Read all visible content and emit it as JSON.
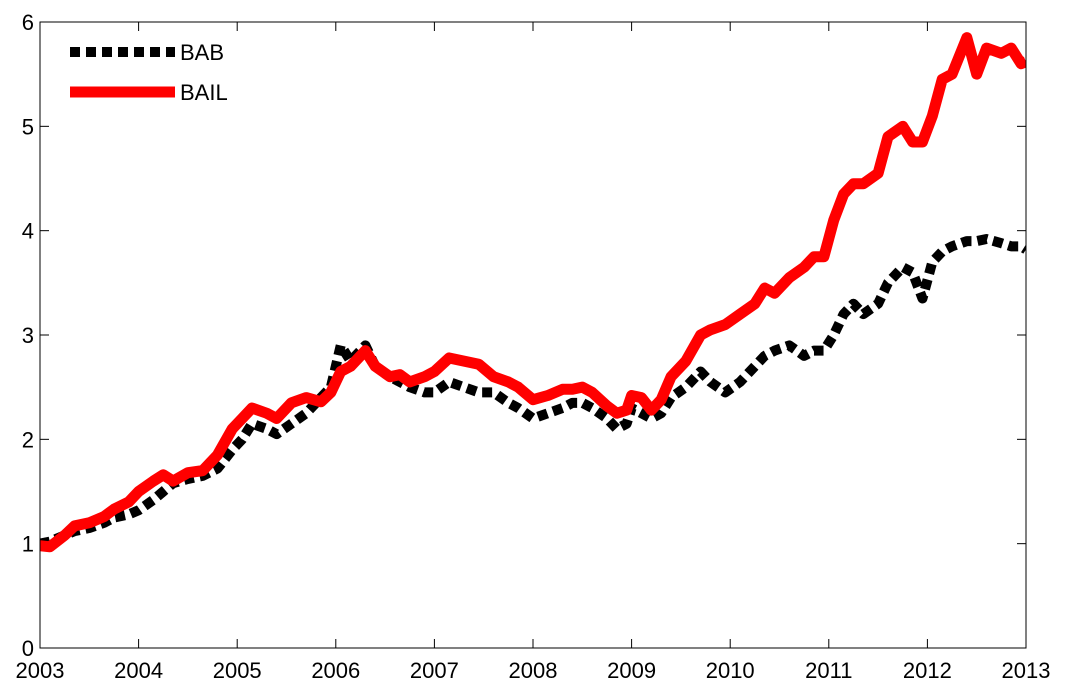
{
  "chart_data": {
    "type": "line",
    "x": [
      2003.0,
      2003.1,
      2003.25,
      2003.35,
      2003.5,
      2003.65,
      2003.75,
      2003.9,
      2004.0,
      2004.15,
      2004.25,
      2004.35,
      2004.5,
      2004.65,
      2004.8,
      2004.95,
      2005.05,
      2005.15,
      2005.3,
      2005.4,
      2005.55,
      2005.7,
      2005.85,
      2005.95,
      2006.05,
      2006.15,
      2006.3,
      2006.4,
      2006.55,
      2006.65,
      2006.75,
      2006.9,
      2007.0,
      2007.15,
      2007.3,
      2007.45,
      2007.6,
      2007.75,
      2007.85,
      2008.0,
      2008.15,
      2008.3,
      2008.4,
      2008.5,
      2008.6,
      2008.75,
      2008.85,
      2008.95,
      2009.0,
      2009.1,
      2009.2,
      2009.3,
      2009.4,
      2009.55,
      2009.7,
      2009.8,
      2009.95,
      2010.1,
      2010.25,
      2010.35,
      2010.45,
      2010.6,
      2010.75,
      2010.85,
      2010.95,
      2011.05,
      2011.15,
      2011.25,
      2011.35,
      2011.5,
      2011.6,
      2011.75,
      2011.85,
      2011.95,
      2012.05,
      2012.15,
      2012.25,
      2012.4,
      2012.5,
      2012.6,
      2012.75,
      2012.85,
      2012.95,
      2013.0
    ],
    "series": [
      {
        "name": "BAB",
        "color": "#000000",
        "dashed": true,
        "values": [
          1.0,
          1.02,
          1.08,
          1.12,
          1.15,
          1.2,
          1.25,
          1.28,
          1.32,
          1.42,
          1.5,
          1.58,
          1.62,
          1.65,
          1.72,
          1.9,
          2.0,
          2.15,
          2.1,
          2.05,
          2.15,
          2.25,
          2.4,
          2.5,
          2.9,
          2.75,
          2.9,
          2.7,
          2.6,
          2.55,
          2.5,
          2.45,
          2.45,
          2.55,
          2.5,
          2.45,
          2.45,
          2.35,
          2.3,
          2.2,
          2.25,
          2.3,
          2.35,
          2.35,
          2.3,
          2.2,
          2.1,
          2.15,
          2.3,
          2.25,
          2.2,
          2.25,
          2.4,
          2.5,
          2.65,
          2.55,
          2.45,
          2.55,
          2.7,
          2.8,
          2.85,
          2.9,
          2.8,
          2.85,
          2.85,
          3.0,
          3.2,
          3.3,
          3.2,
          3.3,
          3.5,
          3.65,
          3.6,
          3.35,
          3.7,
          3.8,
          3.85,
          3.9,
          3.9,
          3.92,
          3.88,
          3.85,
          3.85,
          3.82
        ]
      },
      {
        "name": "BAIL",
        "color": "#ff0000",
        "dashed": false,
        "values": [
          0.98,
          0.97,
          1.08,
          1.17,
          1.2,
          1.26,
          1.33,
          1.4,
          1.5,
          1.6,
          1.66,
          1.6,
          1.68,
          1.7,
          1.85,
          2.1,
          2.2,
          2.3,
          2.25,
          2.2,
          2.35,
          2.4,
          2.36,
          2.45,
          2.65,
          2.7,
          2.85,
          2.7,
          2.6,
          2.62,
          2.55,
          2.6,
          2.65,
          2.78,
          2.75,
          2.72,
          2.6,
          2.55,
          2.5,
          2.38,
          2.42,
          2.48,
          2.48,
          2.5,
          2.45,
          2.32,
          2.25,
          2.28,
          2.42,
          2.4,
          2.28,
          2.38,
          2.6,
          2.75,
          3.0,
          3.05,
          3.1,
          3.2,
          3.3,
          3.45,
          3.4,
          3.55,
          3.65,
          3.75,
          3.75,
          4.1,
          4.35,
          4.45,
          4.45,
          4.55,
          4.9,
          5.0,
          4.85,
          4.85,
          5.1,
          5.45,
          5.5,
          5.85,
          5.5,
          5.75,
          5.7,
          5.75,
          5.6,
          5.62
        ]
      }
    ],
    "xlim": [
      2003,
      2013
    ],
    "xticks": [
      2003,
      2004,
      2005,
      2006,
      2007,
      2008,
      2009,
      2010,
      2011,
      2012,
      2013
    ],
    "ylim": [
      0,
      6
    ],
    "yticks": [
      0,
      1,
      2,
      3,
      4,
      5,
      6
    ],
    "grid": false,
    "legend": "northwest"
  }
}
